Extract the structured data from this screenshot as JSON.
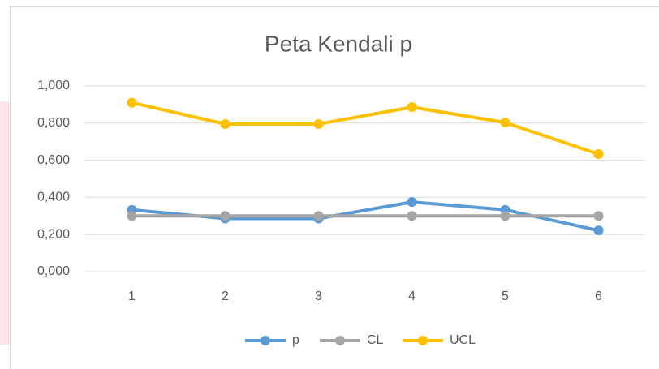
{
  "chart_data": {
    "type": "line",
    "title": "Peta Kendali p",
    "categories": [
      "1",
      "2",
      "3",
      "4",
      "5",
      "6"
    ],
    "series": [
      {
        "name": "p",
        "color": "#5b9bd5",
        "values": [
          0.333,
          0.286,
          0.286,
          0.375,
          0.333,
          0.222
        ]
      },
      {
        "name": "CL",
        "color": "#a5a5a5",
        "values": [
          0.3,
          0.3,
          0.3,
          0.3,
          0.3,
          0.3
        ]
      },
      {
        "name": "UCL",
        "color": "#ffc000",
        "values": [
          0.91,
          0.795,
          0.795,
          0.886,
          0.803,
          0.633
        ]
      }
    ],
    "ylim": [
      0,
      1
    ],
    "yticks": [
      {
        "value": 0,
        "label": "0,000"
      },
      {
        "value": 0.2,
        "label": "0,200"
      },
      {
        "value": 0.4,
        "label": "0,400"
      },
      {
        "value": 0.6,
        "label": "0,600"
      },
      {
        "value": 0.8,
        "label": "0,800"
      },
      {
        "value": 1,
        "label": "1,000"
      }
    ],
    "grid": true,
    "legend": "bottom"
  }
}
